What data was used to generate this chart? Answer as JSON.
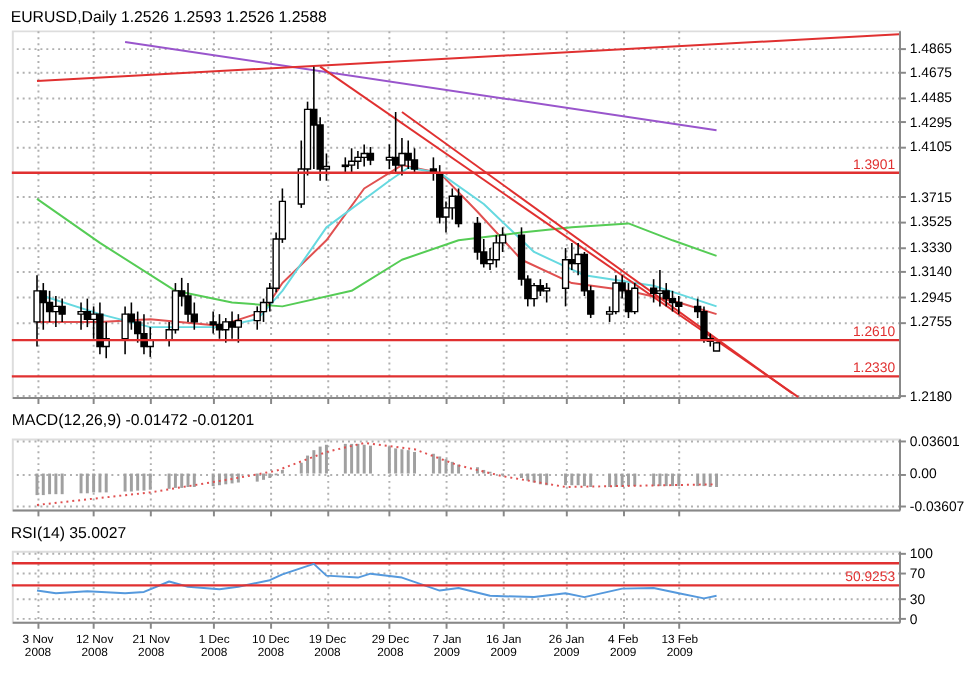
{
  "chart_data": [
    {
      "type": "candlestick",
      "title": "EURUSD,Daily 1.2526 1.2593 1.2526 1.2588",
      "color": "#000000",
      "x": [
        "2008-11-03",
        "2008-11-04",
        "2008-11-05",
        "2008-11-06",
        "2008-11-07",
        "2008-11-10",
        "2008-11-11",
        "2008-11-12",
        "2008-11-13",
        "2008-11-14",
        "2008-11-17",
        "2008-11-18",
        "2008-11-19",
        "2008-11-20",
        "2008-11-21",
        "2008-11-24",
        "2008-11-25",
        "2008-11-26",
        "2008-11-27",
        "2008-11-28",
        "2008-12-01",
        "2008-12-02",
        "2008-12-03",
        "2008-12-04",
        "2008-12-05",
        "2008-12-08",
        "2008-12-09",
        "2008-12-10",
        "2008-12-11",
        "2008-12-12",
        "2008-12-15",
        "2008-12-16",
        "2008-12-17",
        "2008-12-18",
        "2008-12-19",
        "2008-12-22",
        "2008-12-23",
        "2008-12-24",
        "2008-12-25",
        "2008-12-26",
        "2008-12-29",
        "2008-12-30",
        "2008-12-31",
        "2009-01-01",
        "2009-01-02",
        "2009-01-05",
        "2009-01-06",
        "2009-01-07",
        "2009-01-08",
        "2009-01-09",
        "2009-01-12",
        "2009-01-13",
        "2009-01-14",
        "2009-01-15",
        "2009-01-16",
        "2009-01-19",
        "2009-01-20",
        "2009-01-21",
        "2009-01-22",
        "2009-01-23",
        "2009-01-26",
        "2009-01-27",
        "2009-01-28",
        "2009-01-29",
        "2009-01-30",
        "2009-02-02",
        "2009-02-03",
        "2009-02-04",
        "2009-02-05",
        "2009-02-06",
        "2009-02-09",
        "2009-02-10",
        "2009-02-11",
        "2009-02-12",
        "2009-02-13",
        "2009-02-16",
        "2009-02-17",
        "2009-02-18",
        "2009-02-19"
      ],
      "ohlc": [
        [
          1.275,
          1.311,
          1.256,
          1.299
        ],
        [
          1.299,
          1.305,
          1.269,
          1.29
        ],
        [
          1.29,
          1.299,
          1.275,
          1.283
        ],
        [
          1.283,
          1.295,
          1.271,
          1.287
        ],
        [
          1.287,
          1.293,
          1.275,
          1.281
        ],
        [
          1.281,
          1.29,
          1.269,
          1.283
        ],
        [
          1.283,
          1.293,
          1.271,
          1.277
        ],
        [
          1.277,
          1.287,
          1.262,
          1.281
        ],
        [
          1.281,
          1.29,
          1.25,
          1.256
        ],
        [
          1.256,
          1.275,
          1.247,
          1.262
        ],
        [
          1.262,
          1.287,
          1.25,
          1.281
        ],
        [
          1.281,
          1.29,
          1.269,
          1.275
        ],
        [
          1.275,
          1.283,
          1.259,
          1.266
        ],
        [
          1.266,
          1.281,
          1.25,
          1.256
        ],
        [
          1.256,
          1.271,
          1.248,
          1.261
        ],
        [
          1.261,
          1.275,
          1.256,
          1.269
        ],
        [
          1.269,
          1.305,
          1.266,
          1.299
        ],
        [
          1.299,
          1.309,
          1.287,
          1.295
        ],
        [
          1.295,
          1.305,
          1.275,
          1.281
        ],
        [
          1.281,
          1.29,
          1.269,
          1.275
        ],
        [
          1.275,
          1.283,
          1.266,
          1.273
        ],
        [
          1.273,
          1.281,
          1.262,
          1.269
        ],
        [
          1.269,
          1.278,
          1.259,
          1.275
        ],
        [
          1.275,
          1.283,
          1.262,
          1.271
        ],
        [
          1.271,
          1.281,
          1.259,
          1.276
        ],
        [
          1.276,
          1.287,
          1.269,
          1.283
        ],
        [
          1.283,
          1.293,
          1.275,
          1.29
        ],
        [
          1.29,
          1.305,
          1.283,
          1.301
        ],
        [
          1.301,
          1.344,
          1.298,
          1.339
        ],
        [
          1.339,
          1.378,
          1.336,
          1.368
        ],
        [
          1.366,
          1.415,
          1.363,
          1.393
        ],
        [
          1.393,
          1.445,
          1.388,
          1.439
        ],
        [
          1.439,
          1.472,
          1.393,
          1.427
        ],
        [
          1.427,
          1.433,
          1.384,
          1.393
        ],
        [
          1.393,
          1.405,
          1.384,
          1.395
        ],
        [
          1.395,
          1.402,
          1.39,
          1.396
        ],
        [
          1.396,
          1.409,
          1.39,
          1.399
        ],
        [
          1.399,
          1.407,
          1.393,
          1.402
        ],
        [
          1.402,
          1.412,
          1.395,
          1.405
        ],
        [
          1.405,
          1.41,
          1.396,
          1.4
        ],
        [
          1.4,
          1.412,
          1.393,
          1.402
        ],
        [
          1.402,
          1.437,
          1.39,
          1.396
        ],
        [
          1.396,
          1.417,
          1.388,
          1.405
        ],
        [
          1.405,
          1.415,
          1.393,
          1.4
        ],
        [
          1.4,
          1.409,
          1.39,
          1.393
        ],
        [
          1.393,
          1.402,
          1.384,
          1.39
        ],
        [
          1.39,
          1.396,
          1.351,
          1.356
        ],
        [
          1.356,
          1.368,
          1.344,
          1.363
        ],
        [
          1.363,
          1.378,
          1.354,
          1.372
        ],
        [
          1.372,
          1.378,
          1.348,
          1.351
        ],
        [
          1.351,
          1.356,
          1.323,
          1.329
        ],
        [
          1.329,
          1.339,
          1.317,
          1.32
        ],
        [
          1.32,
          1.332,
          1.315,
          1.323
        ],
        [
          1.323,
          1.342,
          1.317,
          1.336
        ],
        [
          1.336,
          1.348,
          1.329,
          1.342
        ],
        [
          1.342,
          1.348,
          1.303,
          1.308
        ],
        [
          1.308,
          1.311,
          1.287,
          1.293
        ],
        [
          1.293,
          1.305,
          1.287,
          1.303
        ],
        [
          1.303,
          1.308,
          1.295,
          1.299
        ],
        [
          1.299,
          1.305,
          1.29,
          1.301
        ],
        [
          1.301,
          1.332,
          1.287,
          1.323
        ],
        [
          1.323,
          1.336,
          1.315,
          1.32
        ],
        [
          1.32,
          1.336,
          1.311,
          1.327
        ],
        [
          1.327,
          1.329,
          1.295,
          1.299
        ],
        [
          1.299,
          1.303,
          1.278,
          1.281
        ],
        [
          1.281,
          1.287,
          1.275,
          1.283
        ],
        [
          1.283,
          1.311,
          1.281,
          1.305
        ],
        [
          1.305,
          1.311,
          1.293,
          1.299
        ],
        [
          1.299,
          1.305,
          1.278,
          1.283
        ],
        [
          1.283,
          1.305,
          1.281,
          1.301
        ],
        [
          1.301,
          1.308,
          1.29,
          1.297
        ],
        [
          1.297,
          1.315,
          1.287,
          1.299
        ],
        [
          1.299,
          1.305,
          1.287,
          1.293
        ],
        [
          1.293,
          1.299,
          1.283,
          1.29
        ],
        [
          1.29,
          1.295,
          1.281,
          1.287
        ],
        [
          1.287,
          1.293,
          1.278,
          1.283
        ],
        [
          1.283,
          1.287,
          1.259,
          1.262
        ],
        [
          1.262,
          1.266,
          1.256,
          1.26
        ],
        [
          1.2526,
          1.2593,
          1.2526,
          1.2588
        ]
      ],
      "series": [
        {
          "type": "line",
          "color": "#e05050",
          "x": [
            "2008-11-03",
            "2008-11-13",
            "2008-11-21",
            "2008-12-02",
            "2008-12-09",
            "2008-12-12",
            "2008-12-19",
            "2008-12-25",
            "2008-12-31",
            "2009-01-06",
            "2009-01-12",
            "2009-01-19",
            "2009-01-27",
            "2009-02-05",
            "2009-02-13",
            "2009-02-19"
          ],
          "values": [
            1.275,
            1.275,
            1.277,
            1.272,
            1.283,
            1.305,
            1.338,
            1.378,
            1.396,
            1.39,
            1.36,
            1.323,
            1.305,
            1.299,
            1.29,
            1.281
          ]
        },
        {
          "type": "line",
          "color": "#66d9e0",
          "x": [
            "2008-11-04",
            "2008-11-13",
            "2008-11-21",
            "2008-12-02",
            "2008-12-08",
            "2008-12-12",
            "2008-12-19",
            "2008-12-29",
            "2009-01-01",
            "2009-01-06",
            "2009-01-13",
            "2009-01-21",
            "2009-01-29",
            "2009-02-09",
            "2009-02-19"
          ],
          "values": [
            1.295,
            1.281,
            1.271,
            1.271,
            1.277,
            1.299,
            1.348,
            1.384,
            1.394,
            1.39,
            1.366,
            1.329,
            1.311,
            1.303,
            1.287
          ]
        },
        {
          "type": "line",
          "color": "#55cc55",
          "x": [
            "2008-11-03",
            "2008-11-13",
            "2008-11-25",
            "2008-12-04",
            "2008-12-12",
            "2008-12-23",
            "2008-12-31",
            "2009-01-09",
            "2009-01-19",
            "2009-01-27",
            "2009-02-05",
            "2009-02-12",
            "2009-02-19"
          ],
          "values": [
            1.37,
            1.336,
            1.299,
            1.29,
            1.287,
            1.299,
            1.323,
            1.338,
            1.344,
            1.348,
            1.351,
            1.338,
            1.326
          ]
        },
        {
          "type": "line",
          "color": "#9955cc",
          "x": [
            "2008-11-17",
            "2009-02-19"
          ],
          "values": [
            1.491,
            1.423
          ]
        },
        {
          "type": "line",
          "color": "#e03030",
          "x": [
            "2008-11-03",
            "2009-03-20"
          ],
          "values": [
            1.461,
            1.497
          ]
        },
        {
          "type": "line",
          "color": "#e03030",
          "x": [
            "2008-12-18",
            "2009-03-04"
          ],
          "values": [
            1.472,
            1.217
          ]
        },
        {
          "type": "line",
          "color": "#e03030",
          "x": [
            "2008-12-31",
            "2009-03-03"
          ],
          "values": [
            1.437,
            1.22
          ]
        }
      ],
      "ref_lines": [
        {
          "axis": "y",
          "value": 1.3901,
          "label": "1.3901",
          "color": "#e03030"
        },
        {
          "axis": "y",
          "value": 1.261,
          "label": "1.2610",
          "color": "#e03030"
        },
        {
          "axis": "y",
          "value": 1.233,
          "label": "1.2330",
          "color": "#e03030"
        }
      ],
      "xlim": [
        "2008-10-30",
        "2009-03-20"
      ],
      "ylim": [
        1.217,
        1.5
      ],
      "yticks": [
        {
          "value": 1.218,
          "label": "1.2180"
        },
        1.2755,
        1.2945,
        {
          "value": 1.314,
          "label": "1.3140"
        },
        {
          "value": 1.333,
          "label": "1.3330"
        },
        1.3525,
        1.3715,
        1.4105,
        1.4295,
        1.4485,
        1.4675,
        1.4865
      ],
      "xticks": [
        {
          "value": "2008-11-03",
          "label": null
        },
        {
          "value": "2008-11-12",
          "label": null
        },
        {
          "value": "2008-11-21",
          "label": null
        },
        {
          "value": "2008-12-01",
          "label": null
        },
        {
          "value": "2008-12-10",
          "label": null
        },
        {
          "value": "2008-12-19",
          "label": null
        },
        {
          "value": "2008-12-29",
          "label": null
        },
        {
          "value": "2009-01-07",
          "label": null
        },
        {
          "value": "2009-01-16",
          "label": null
        },
        {
          "value": "2009-01-26",
          "label": null
        },
        {
          "value": "2009-02-04",
          "label": null
        },
        {
          "value": "2009-02-13",
          "label": null
        }
      ],
      "tick_labels": "y",
      "grid": true
    },
    {
      "type": "bar",
      "title": "MACD(12,26,9) -0.01472 -0.01201",
      "color": "#a0a0a0",
      "x": [
        "2008-11-03",
        "2008-11-04",
        "2008-11-05",
        "2008-11-06",
        "2008-11-07",
        "2008-11-10",
        "2008-11-11",
        "2008-11-12",
        "2008-11-13",
        "2008-11-14",
        "2008-11-17",
        "2008-11-18",
        "2008-11-19",
        "2008-11-20",
        "2008-11-21",
        "2008-11-24",
        "2008-11-25",
        "2008-11-26",
        "2008-11-27",
        "2008-11-28",
        "2008-12-01",
        "2008-12-02",
        "2008-12-03",
        "2008-12-04",
        "2008-12-05",
        "2008-12-08",
        "2008-12-09",
        "2008-12-10",
        "2008-12-11",
        "2008-12-12",
        "2008-12-15",
        "2008-12-16",
        "2008-12-17",
        "2008-12-18",
        "2008-12-19",
        "2008-12-22",
        "2008-12-23",
        "2008-12-24",
        "2008-12-25",
        "2008-12-26",
        "2008-12-29",
        "2008-12-30",
        "2008-12-31",
        "2009-01-01",
        "2009-01-02",
        "2009-01-05",
        "2009-01-06",
        "2009-01-07",
        "2009-01-08",
        "2009-01-09",
        "2009-01-12",
        "2009-01-13",
        "2009-01-14",
        "2009-01-15",
        "2009-01-16",
        "2009-01-19",
        "2009-01-20",
        "2009-01-21",
        "2009-01-22",
        "2009-01-23",
        "2009-01-26",
        "2009-01-27",
        "2009-01-28",
        "2009-01-29",
        "2009-01-30",
        "2009-02-02",
        "2009-02-03",
        "2009-02-04",
        "2009-02-05",
        "2009-02-06",
        "2009-02-09",
        "2009-02-10",
        "2009-02-11",
        "2009-02-12",
        "2009-02-13",
        "2009-02-16",
        "2009-02-17",
        "2009-02-18",
        "2009-02-19"
      ],
      "values": [
        -0.024,
        -0.024,
        -0.023,
        -0.023,
        -0.023,
        -0.022,
        -0.022,
        -0.021,
        -0.021,
        -0.021,
        -0.02,
        -0.02,
        -0.019,
        -0.019,
        -0.018,
        -0.017,
        -0.016,
        -0.016,
        -0.015,
        -0.015,
        -0.014,
        -0.013,
        -0.012,
        -0.011,
        -0.01,
        -0.009,
        -0.007,
        -0.005,
        -0.002,
        0.004,
        0.012,
        0.02,
        0.026,
        0.03,
        0.032,
        0.033,
        0.033,
        0.033,
        0.032,
        0.031,
        0.03,
        0.028,
        0.027,
        0.026,
        0.024,
        0.022,
        0.019,
        0.016,
        0.013,
        0.01,
        0.007,
        0.004,
        0.002,
        0.0,
        -0.002,
        -0.005,
        -0.008,
        -0.01,
        -0.012,
        -0.013,
        -0.013,
        -0.013,
        -0.013,
        -0.014,
        -0.015,
        -0.015,
        -0.015,
        -0.015,
        -0.014,
        -0.014,
        -0.014,
        -0.014,
        -0.014,
        -0.014,
        -0.014,
        -0.014,
        -0.014,
        -0.015,
        -0.015
      ],
      "series": [
        {
          "type": "line",
          "color": "#e05050",
          "line_style": "dotted",
          "x": [
            "2008-11-03",
            "2008-11-21",
            "2008-12-04",
            "2008-12-11",
            "2008-12-19",
            "2008-12-25",
            "2009-01-02",
            "2009-01-09",
            "2009-01-16",
            "2009-01-26",
            "2009-02-19"
          ],
          "values": [
            -0.035,
            -0.021,
            -0.006,
            0.003,
            0.024,
            0.034,
            0.027,
            0.009,
            -0.003,
            -0.015,
            -0.012
          ]
        }
      ],
      "xlim": [
        "2008-10-30",
        "2009-03-20"
      ],
      "ylim": [
        -0.04,
        0.039
      ],
      "yticks": [
        -0.03607,
        {
          "value": 0,
          "label": "0.00"
        },
        0.03601
      ],
      "xticks": [
        {
          "value": "2008-11-03",
          "label": null
        },
        {
          "value": "2008-11-12",
          "label": null
        },
        {
          "value": "2008-11-21",
          "label": null
        },
        {
          "value": "2008-12-01",
          "label": null
        },
        {
          "value": "2008-12-10",
          "label": null
        },
        {
          "value": "2008-12-19",
          "label": null
        },
        {
          "value": "2008-12-29",
          "label": null
        },
        {
          "value": "2009-01-07",
          "label": null
        },
        {
          "value": "2009-01-16",
          "label": null
        },
        {
          "value": "2009-01-26",
          "label": null
        },
        {
          "value": "2009-02-04",
          "label": null
        },
        {
          "value": "2009-02-13",
          "label": null
        }
      ],
      "tick_labels": "y",
      "grid": true
    },
    {
      "type": "line",
      "title": "RSI(14) 35.0027",
      "series": [
        {
          "color": "#5599dd",
          "x": [
            "2008-11-03",
            "2008-11-06",
            "2008-11-11",
            "2008-11-17",
            "2008-11-20",
            "2008-11-24",
            "2008-11-27",
            "2008-12-02",
            "2008-12-05",
            "2008-12-10",
            "2008-12-12",
            "2008-12-17",
            "2008-12-19",
            "2008-12-24",
            "2008-12-26",
            "2008-12-31",
            "2009-01-06",
            "2009-01-09",
            "2009-01-14",
            "2009-01-21",
            "2009-01-26",
            "2009-01-29",
            "2009-02-04",
            "2009-02-09",
            "2009-02-13",
            "2009-02-17",
            "2009-02-19"
          ],
          "values": [
            43,
            39,
            42,
            39,
            41,
            57,
            49,
            45,
            49,
            59,
            68,
            84,
            66,
            63,
            69,
            63,
            43,
            47,
            35,
            33,
            39,
            33,
            46,
            47,
            39,
            31,
            35
          ]
        }
      ],
      "ref_lines": [
        {
          "axis": "y",
          "value": 85,
          "color": "#e03030"
        },
        {
          "axis": "y",
          "value": 50.9253,
          "label": "50.9253",
          "color": "#e03030"
        }
      ],
      "xlim": [
        "2008-10-30",
        "2009-03-20"
      ],
      "ylim": [
        -5,
        104
      ],
      "yticks": [
        0,
        30,
        70,
        100
      ],
      "xticks": [
        {
          "value": "2008-11-03",
          "label": "3 Nov 2008"
        },
        {
          "value": "2008-11-12",
          "label": "12 Nov 2008"
        },
        {
          "value": "2008-11-21",
          "label": "21 Nov 2008"
        },
        {
          "value": "2008-12-01",
          "label": "1 Dec 2008"
        },
        {
          "value": "2008-12-10",
          "label": "10 Dec 2008"
        },
        {
          "value": "2008-12-19",
          "label": "19 Dec 2008"
        },
        {
          "value": "2008-12-29",
          "label": "29 Dec 2008"
        },
        {
          "value": "2009-01-07",
          "label": "7 Jan 2009"
        },
        {
          "value": "2009-01-16",
          "label": "16 Jan 2009"
        },
        {
          "value": "2009-01-26",
          "label": "26 Jan 2009"
        },
        {
          "value": "2009-02-04",
          "label": "4 Feb 2009"
        },
        {
          "value": "2009-02-13",
          "label": "13 Feb 2009"
        }
      ],
      "grid": true
    }
  ]
}
